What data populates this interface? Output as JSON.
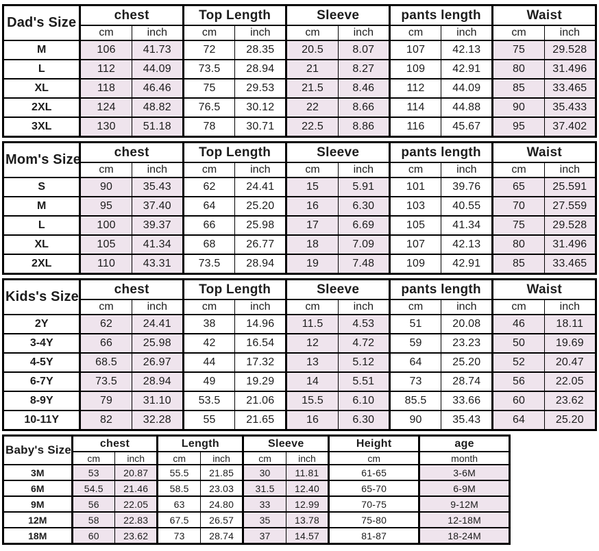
{
  "colors": {
    "shaded_cell": "#EFE4ED",
    "border": "#000000",
    "text": "#1c1c1c",
    "background": "#ffffff"
  },
  "tables": [
    {
      "label": "Dad's Size",
      "groups": [
        {
          "name": "chest",
          "units": [
            "cm",
            "inch"
          ],
          "shaded": true
        },
        {
          "name": "Top Length",
          "units": [
            "cm",
            "inch"
          ],
          "shaded": false
        },
        {
          "name": "Sleeve",
          "units": [
            "cm",
            "inch"
          ],
          "shaded": true
        },
        {
          "name": "pants length",
          "units": [
            "cm",
            "inch"
          ],
          "shaded": false
        },
        {
          "name": "Waist",
          "units": [
            "cm",
            "inch"
          ],
          "shaded": true
        }
      ],
      "rows": [
        {
          "size": "M",
          "values": [
            "106",
            "41.73",
            "72",
            "28.35",
            "20.5",
            "8.07",
            "107",
            "42.13",
            "75",
            "29.528"
          ]
        },
        {
          "size": "L",
          "values": [
            "112",
            "44.09",
            "73.5",
            "28.94",
            "21",
            "8.27",
            "109",
            "42.91",
            "80",
            "31.496"
          ]
        },
        {
          "size": "XL",
          "values": [
            "118",
            "46.46",
            "75",
            "29.53",
            "21.5",
            "8.46",
            "112",
            "44.09",
            "85",
            "33.465"
          ]
        },
        {
          "size": "2XL",
          "values": [
            "124",
            "48.82",
            "76.5",
            "30.12",
            "22",
            "8.66",
            "114",
            "44.88",
            "90",
            "35.433"
          ]
        },
        {
          "size": "3XL",
          "values": [
            "130",
            "51.18",
            "78",
            "30.71",
            "22.5",
            "8.86",
            "116",
            "45.67",
            "95",
            "37.402"
          ]
        }
      ]
    },
    {
      "label": "Mom's Size",
      "groups": [
        {
          "name": "chest",
          "units": [
            "cm",
            "inch"
          ],
          "shaded": true
        },
        {
          "name": "Top Length",
          "units": [
            "cm",
            "inch"
          ],
          "shaded": false
        },
        {
          "name": "Sleeve",
          "units": [
            "cm",
            "inch"
          ],
          "shaded": true
        },
        {
          "name": "pants length",
          "units": [
            "cm",
            "inch"
          ],
          "shaded": false
        },
        {
          "name": "Waist",
          "units": [
            "cm",
            "inch"
          ],
          "shaded": true
        }
      ],
      "rows": [
        {
          "size": "S",
          "values": [
            "90",
            "35.43",
            "62",
            "24.41",
            "15",
            "5.91",
            "101",
            "39.76",
            "65",
            "25.591"
          ]
        },
        {
          "size": "M",
          "values": [
            "95",
            "37.40",
            "64",
            "25.20",
            "16",
            "6.30",
            "103",
            "40.55",
            "70",
            "27.559"
          ]
        },
        {
          "size": "L",
          "values": [
            "100",
            "39.37",
            "66",
            "25.98",
            "17",
            "6.69",
            "105",
            "41.34",
            "75",
            "29.528"
          ]
        },
        {
          "size": "XL",
          "values": [
            "105",
            "41.34",
            "68",
            "26.77",
            "18",
            "7.09",
            "107",
            "42.13",
            "80",
            "31.496"
          ]
        },
        {
          "size": "2XL",
          "values": [
            "110",
            "43.31",
            "73.5",
            "28.94",
            "19",
            "7.48",
            "109",
            "42.91",
            "85",
            "33.465"
          ]
        }
      ]
    },
    {
      "label": "Kids's Size",
      "groups": [
        {
          "name": "chest",
          "units": [
            "cm",
            "inch"
          ],
          "shaded": true
        },
        {
          "name": "Top Length",
          "units": [
            "cm",
            "inch"
          ],
          "shaded": false
        },
        {
          "name": "Sleeve",
          "units": [
            "cm",
            "inch"
          ],
          "shaded": true
        },
        {
          "name": "pants length",
          "units": [
            "cm",
            "inch"
          ],
          "shaded": false
        },
        {
          "name": "Waist",
          "units": [
            "cm",
            "inch"
          ],
          "shaded": true
        }
      ],
      "rows": [
        {
          "size": "2Y",
          "values": [
            "62",
            "24.41",
            "38",
            "14.96",
            "11.5",
            "4.53",
            "51",
            "20.08",
            "46",
            "18.11"
          ]
        },
        {
          "size": "3-4Y",
          "values": [
            "66",
            "25.98",
            "42",
            "16.54",
            "12",
            "4.72",
            "59",
            "23.23",
            "50",
            "19.69"
          ]
        },
        {
          "size": "4-5Y",
          "values": [
            "68.5",
            "26.97",
            "44",
            "17.32",
            "13",
            "5.12",
            "64",
            "25.20",
            "52",
            "20.47"
          ]
        },
        {
          "size": "6-7Y",
          "values": [
            "73.5",
            "28.94",
            "49",
            "19.29",
            "14",
            "5.51",
            "73",
            "28.74",
            "56",
            "22.05"
          ]
        },
        {
          "size": "8-9Y",
          "values": [
            "79",
            "31.10",
            "53.5",
            "21.06",
            "15.5",
            "6.10",
            "85.5",
            "33.66",
            "60",
            "23.62"
          ]
        },
        {
          "size": "10-11Y",
          "values": [
            "82",
            "32.28",
            "55",
            "21.65",
            "16",
            "6.30",
            "90",
            "35.43",
            "64",
            "25.20"
          ]
        }
      ]
    },
    {
      "label": "Baby's Size",
      "groups": [
        {
          "name": "chest",
          "units": [
            "cm",
            "inch"
          ],
          "shaded": true
        },
        {
          "name": "Length",
          "units": [
            "cm",
            "inch"
          ],
          "shaded": false
        },
        {
          "name": "Sleeve",
          "units": [
            "cm",
            "inch"
          ],
          "shaded": true
        },
        {
          "name": "Height",
          "units": [
            "cm"
          ],
          "shaded": false
        },
        {
          "name": "age",
          "units": [
            "month"
          ],
          "shaded": true
        }
      ],
      "rows": [
        {
          "size": "3M",
          "values": [
            "53",
            "20.87",
            "55.5",
            "21.85",
            "30",
            "11.81",
            "61-65",
            "3-6M"
          ]
        },
        {
          "size": "6M",
          "values": [
            "54.5",
            "21.46",
            "58.5",
            "23.03",
            "31.5",
            "12.40",
            "65-70",
            "6-9M"
          ]
        },
        {
          "size": "9M",
          "values": [
            "56",
            "22.05",
            "63",
            "24.80",
            "33",
            "12.99",
            "70-75",
            "9-12M"
          ]
        },
        {
          "size": "12M",
          "values": [
            "58",
            "22.83",
            "67.5",
            "26.57",
            "35",
            "13.78",
            "75-80",
            "12-18M"
          ]
        },
        {
          "size": "18M",
          "values": [
            "60",
            "23.62",
            "73",
            "28.74",
            "37",
            "14.57",
            "81-87",
            "18-24M"
          ]
        }
      ]
    }
  ]
}
